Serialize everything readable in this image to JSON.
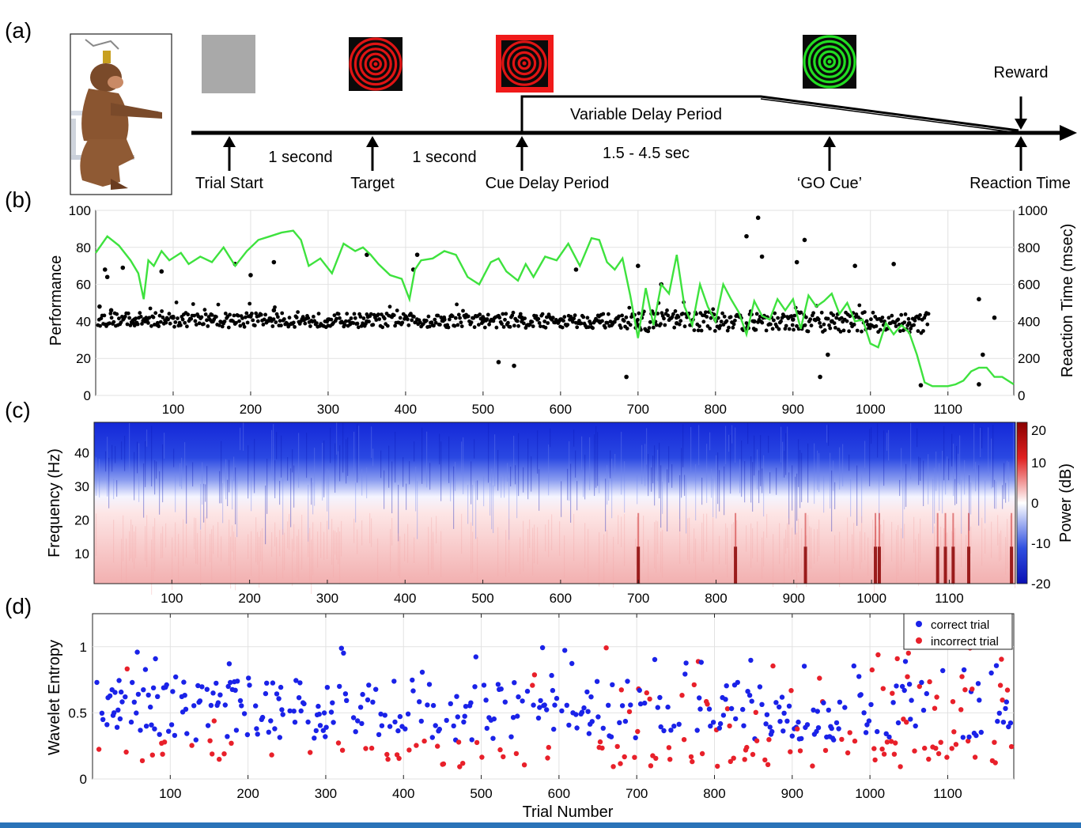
{
  "panels": {
    "a": {
      "label": "(a)",
      "stimuli_colors": {
        "blank": "#a9a9a9",
        "target": "#e01414",
        "cue_bg": "#f01a1a",
        "go": "#22dd22",
        "ring_dark": "#0a0a0a"
      },
      "events": [
        "Trial Start",
        "Target",
        "Cue Delay Period",
        "‘GO Cue’",
        "Reaction Time"
      ],
      "intervals": [
        "1 second",
        "1 second",
        "1.5 - 4.5 sec"
      ],
      "delay_label": "Variable Delay Period",
      "reward_label": "Reward"
    },
    "b": {
      "label": "(b)"
    },
    "c": {
      "label": "(c)"
    },
    "d": {
      "label": "(d)"
    }
  },
  "chart_data": [
    {
      "type": "line",
      "panel": "b",
      "ylabel": "Performance",
      "ylabel_right": "Reaction Time (msec)",
      "xlim": [
        0,
        1185
      ],
      "ylim": [
        0,
        100
      ],
      "ylim_right": [
        0,
        1000
      ],
      "x_ticks": [
        100,
        200,
        300,
        400,
        500,
        600,
        700,
        800,
        900,
        1000,
        1100
      ],
      "y_ticks": [
        0,
        20,
        40,
        60,
        80,
        100
      ],
      "y_ticks_right": [
        0,
        200,
        400,
        600,
        800,
        1000
      ],
      "grid": true,
      "performance_color": "#3ee23e",
      "rt_color": "#000000",
      "performance": {
        "x": [
          0,
          15,
          30,
          45,
          55,
          62,
          68,
          75,
          85,
          95,
          110,
          120,
          135,
          150,
          165,
          180,
          195,
          210,
          225,
          240,
          255,
          265,
          275,
          290,
          305,
          320,
          335,
          345,
          355,
          365,
          380,
          395,
          405,
          412,
          420,
          435,
          450,
          465,
          480,
          495,
          510,
          520,
          530,
          545,
          555,
          565,
          580,
          595,
          610,
          625,
          640,
          650,
          660,
          670,
          680,
          690,
          700,
          710,
          720,
          730,
          740,
          750,
          760,
          770,
          780,
          790,
          800,
          810,
          820,
          830,
          840,
          850,
          860,
          870,
          880,
          890,
          900,
          910,
          920,
          930,
          940,
          950,
          960,
          970,
          980,
          990,
          1000,
          1010,
          1020,
          1030,
          1040,
          1050,
          1060,
          1070,
          1080,
          1090,
          1100,
          1110,
          1120,
          1130,
          1140,
          1150,
          1160,
          1170,
          1185
        ],
        "y": [
          77,
          86,
          81,
          73,
          66,
          52,
          73,
          70,
          78,
          73,
          77,
          71,
          75,
          72,
          80,
          70,
          78,
          84,
          86,
          88,
          89,
          84,
          70,
          74,
          66,
          82,
          78,
          80,
          76,
          71,
          65,
          63,
          52,
          68,
          73,
          74,
          78,
          76,
          64,
          60,
          72,
          74,
          67,
          62,
          71,
          64,
          75,
          73,
          82,
          70,
          85,
          84,
          72,
          68,
          74,
          54,
          31,
          58,
          38,
          60,
          55,
          76,
          48,
          38,
          60,
          48,
          40,
          60,
          52,
          45,
          33,
          51,
          43,
          41,
          52,
          46,
          52,
          36,
          54,
          48,
          51,
          55,
          44,
          50,
          40,
          41,
          28,
          26,
          39,
          33,
          38,
          34,
          22,
          7,
          5,
          5,
          5,
          6,
          8,
          13,
          15,
          15,
          10,
          10,
          6
        ]
      },
      "reaction_time_samples_ms": [
        {
          "x": 5,
          "y": 480
        },
        {
          "x": 20,
          "y": 460
        },
        {
          "x": 50,
          "y": 410
        },
        {
          "x": 80,
          "y": 380
        },
        {
          "x": 100,
          "y": 420
        },
        {
          "x": 150,
          "y": 400
        },
        {
          "x": 200,
          "y": 430
        },
        {
          "x": 230,
          "y": 460
        },
        {
          "x": 300,
          "y": 410
        },
        {
          "x": 350,
          "y": 400
        },
        {
          "x": 400,
          "y": 420
        },
        {
          "x": 450,
          "y": 410
        },
        {
          "x": 500,
          "y": 400
        },
        {
          "x": 550,
          "y": 420
        },
        {
          "x": 600,
          "y": 410
        },
        {
          "x": 650,
          "y": 400
        },
        {
          "x": 700,
          "y": 380
        },
        {
          "x": 750,
          "y": 390
        },
        {
          "x": 800,
          "y": 410
        },
        {
          "x": 850,
          "y": 400
        },
        {
          "x": 900,
          "y": 410
        },
        {
          "x": 950,
          "y": 400
        },
        {
          "x": 1000,
          "y": 380
        },
        {
          "x": 1050,
          "y": 390
        },
        {
          "x": 15,
          "y": 640
        },
        {
          "x": 12,
          "y": 680
        },
        {
          "x": 35,
          "y": 690
        },
        {
          "x": 85,
          "y": 670
        },
        {
          "x": 180,
          "y": 710
        },
        {
          "x": 200,
          "y": 650
        },
        {
          "x": 230,
          "y": 720
        },
        {
          "x": 350,
          "y": 760
        },
        {
          "x": 410,
          "y": 680
        },
        {
          "x": 415,
          "y": 760
        },
        {
          "x": 520,
          "y": 180
        },
        {
          "x": 540,
          "y": 160
        },
        {
          "x": 620,
          "y": 680
        },
        {
          "x": 685,
          "y": 100
        },
        {
          "x": 700,
          "y": 700
        },
        {
          "x": 730,
          "y": 600
        },
        {
          "x": 840,
          "y": 860
        },
        {
          "x": 855,
          "y": 960
        },
        {
          "x": 860,
          "y": 750
        },
        {
          "x": 905,
          "y": 720
        },
        {
          "x": 915,
          "y": 840
        },
        {
          "x": 935,
          "y": 100
        },
        {
          "x": 945,
          "y": 220
        },
        {
          "x": 980,
          "y": 700
        },
        {
          "x": 1030,
          "y": 710
        },
        {
          "x": 1065,
          "y": 55
        },
        {
          "x": 1140,
          "y": 520
        },
        {
          "x": 1145,
          "y": 220
        },
        {
          "x": 1160,
          "y": 420
        },
        {
          "x": 1140,
          "y": 60
        }
      ]
    },
    {
      "type": "heatmap",
      "panel": "c",
      "ylabel": "Frequency (Hz)",
      "colorbar_label": "Power (dB)",
      "xlim": [
        0,
        1185
      ],
      "ylim": [
        1,
        49
      ],
      "x_ticks": [
        100,
        200,
        300,
        400,
        500,
        600,
        700,
        800,
        900,
        1000,
        1100
      ],
      "y_ticks": [
        10,
        20,
        30,
        40
      ],
      "clim": [
        -20,
        20
      ],
      "colorbar_ticks": [
        20,
        10,
        0,
        -10,
        -20
      ],
      "colormap": [
        "#0a10b4",
        "#3050e0",
        "#ffffff",
        "#f08080",
        "#8a0000"
      ],
      "description_bands": [
        {
          "freq_range": [
            35,
            49
          ],
          "power_db": -17
        },
        {
          "freq_range": [
            25,
            35
          ],
          "power_db": -8
        },
        {
          "freq_range": [
            18,
            25
          ],
          "power_db": 0
        },
        {
          "freq_range": [
            1,
            18
          ],
          "power_db": 4
        }
      ],
      "hot_trials": [
        700,
        825,
        915,
        1005,
        1010,
        1085,
        1095,
        1105,
        1125,
        1180
      ]
    },
    {
      "type": "scatter",
      "panel": "d",
      "xlabel": "Trial Number",
      "ylabel": "Wavelet Entropy",
      "xlim": [
        0,
        1185
      ],
      "ylim": [
        0,
        1.25
      ],
      "x_ticks": [
        100,
        200,
        300,
        400,
        500,
        600,
        700,
        800,
        900,
        1000,
        1100
      ],
      "y_ticks": [
        0,
        0.5,
        1
      ],
      "grid": true,
      "legend_position": "top-right",
      "series": [
        {
          "name": "correct trial",
          "color": "#1a22e8"
        },
        {
          "name": "incorrect trial",
          "color": "#e8202a"
        }
      ]
    }
  ]
}
